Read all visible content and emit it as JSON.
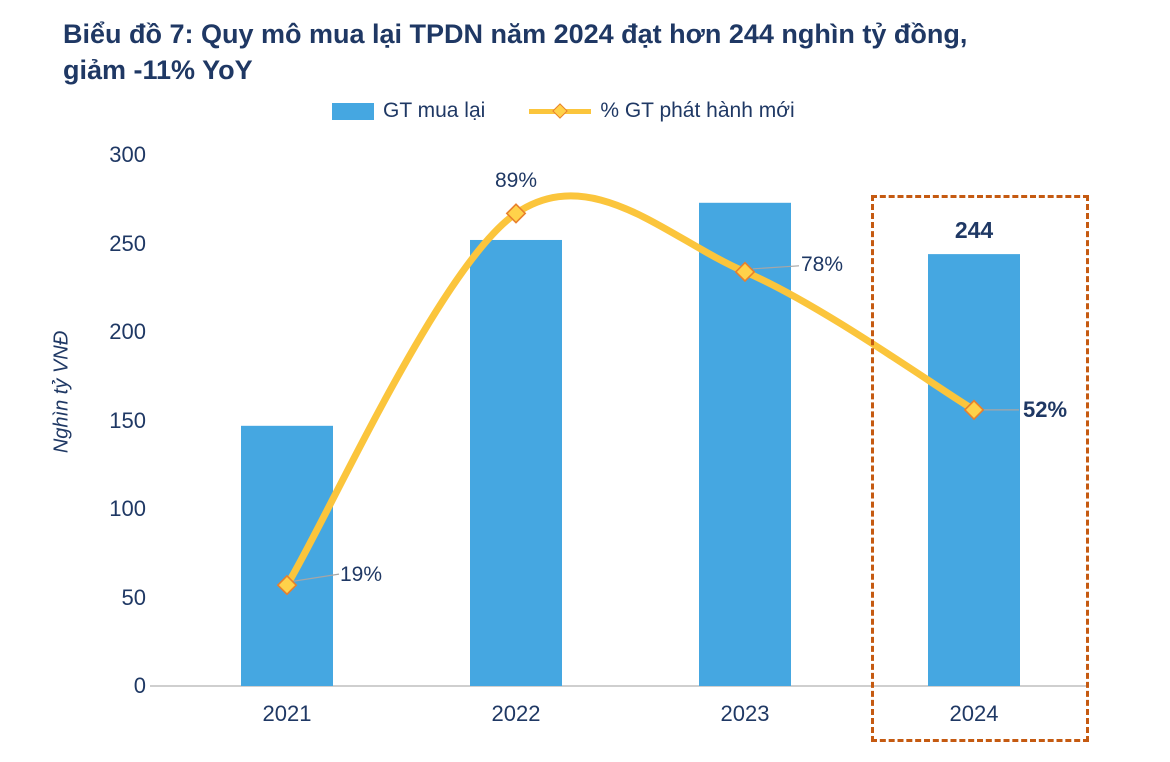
{
  "title": {
    "line1": "Biểu đồ 7: Quy mô mua lại TPDN năm 2024 đạt hơn 244 nghìn tỷ đồng,",
    "line2": "giảm -11% YoY"
  },
  "legend": {
    "bar_label": "GT mua lại",
    "line_label": "% GT phát hành mới"
  },
  "chart_data": {
    "type": "bar",
    "title": "Biểu đồ 7: Quy mô mua lại TPDN năm 2024 đạt hơn 244 nghìn tỷ đồng, giảm -11% YoY",
    "categories": [
      "2021",
      "2022",
      "2023",
      "2024"
    ],
    "series": [
      {
        "name": "GT mua lại",
        "type": "bar",
        "axis": "left",
        "values": [
          147,
          252,
          273,
          244
        ]
      },
      {
        "name": "% GT phát hành mới",
        "type": "line",
        "axis": "percent_of_new_issuance",
        "values": [
          19,
          89,
          78,
          52
        ]
      }
    ],
    "ylabel": "Nghìn tỷ VNĐ",
    "yticks": [
      0,
      50,
      100,
      150,
      200,
      250,
      300
    ],
    "ylim": [
      0,
      300
    ],
    "grid": "off",
    "legend_position": "top",
    "line_labels": [
      "19%",
      "89%",
      "78%",
      "52%"
    ],
    "bar_label_2024": "244",
    "highlight": "2024 column enclosed in dashed rectangle"
  },
  "colors": {
    "bar": "#45A7E1",
    "line": "#FBC53C",
    "marker_fill": "#FFD24A",
    "marker_stroke": "#E8802C",
    "navy_text": "#1F3864",
    "highlight_box": "#C55A11",
    "axis_line": "#BFBFBF",
    "leader_line": "#A6A6A6"
  }
}
